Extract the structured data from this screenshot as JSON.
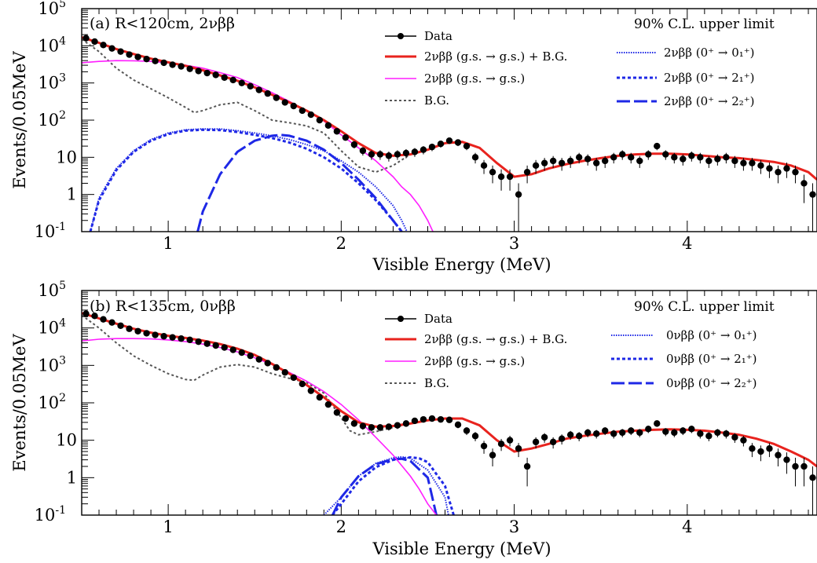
{
  "chart_data": [
    {
      "type": "line",
      "title": "(a) R<120cm, 2νββ",
      "xlabel": "Visible Energy (MeV)",
      "ylabel": "Events/0.05MeV",
      "xlim": [
        0.5,
        4.75
      ],
      "ylim": [
        0.1,
        100000
      ],
      "yscale": "log",
      "x_ticks": [
        "1",
        "2",
        "3",
        "4"
      ],
      "y_ticks": [
        {
          "base": "10",
          "exp": "-1"
        },
        {
          "base": "1",
          "exp": ""
        },
        {
          "base": "10",
          "exp": ""
        },
        {
          "base": "10",
          "exp": "2"
        },
        {
          "base": "10",
          "exp": "3"
        },
        {
          "base": "10",
          "exp": "4"
        },
        {
          "base": "10",
          "exp": "5"
        }
      ],
      "legend_header": "90% C.L. upper limit",
      "legend_left": [
        "Data",
        "2νββ (g.s. → g.s.) + B.G.",
        "2νββ (g.s. → g.s.)",
        "B.G."
      ],
      "legend_right": [
        "2νββ (0⁺ → 0₁⁺)",
        "2νββ (0⁺ → 2₁⁺)",
        "2νββ (0⁺ → 2₂⁺)"
      ],
      "colors": {
        "total": "#e8231e",
        "signal": "#ff1eff",
        "bg": "#555555",
        "limit": "#1e28e6"
      },
      "data_points": {
        "x": [
          0.525,
          0.575,
          0.625,
          0.675,
          0.725,
          0.775,
          0.825,
          0.875,
          0.925,
          0.975,
          1.025,
          1.075,
          1.125,
          1.175,
          1.225,
          1.275,
          1.325,
          1.375,
          1.425,
          1.475,
          1.525,
          1.575,
          1.625,
          1.675,
          1.725,
          1.775,
          1.825,
          1.875,
          1.925,
          1.975,
          2.025,
          2.075,
          2.125,
          2.175,
          2.225,
          2.275,
          2.325,
          2.375,
          2.425,
          2.475,
          2.525,
          2.575,
          2.625,
          2.675,
          2.725,
          2.775,
          2.825,
          2.875,
          2.925,
          2.975,
          3.025,
          3.075,
          3.125,
          3.175,
          3.225,
          3.275,
          3.325,
          3.375,
          3.425,
          3.475,
          3.525,
          3.575,
          3.625,
          3.675,
          3.725,
          3.775,
          3.825,
          3.875,
          3.925,
          3.975,
          4.025,
          4.075,
          4.125,
          4.175,
          4.225,
          4.275,
          4.325,
          4.375,
          4.425,
          4.475,
          4.525,
          4.575,
          4.625,
          4.675,
          4.725
        ],
        "y": [
          16000,
          13000,
          10500,
          8500,
          7000,
          5800,
          5000,
          4400,
          3900,
          3500,
          3100,
          2800,
          2400,
          2100,
          1850,
          1650,
          1400,
          1200,
          1000,
          820,
          650,
          520,
          400,
          300,
          240,
          180,
          140,
          100,
          72,
          50,
          34,
          22,
          15,
          12,
          12,
          11,
          12,
          13,
          14,
          16,
          19,
          23,
          28,
          25,
          20,
          10,
          6,
          4,
          3,
          3,
          1,
          4,
          6,
          7,
          8,
          7,
          8,
          10,
          9,
          7,
          8,
          10,
          12,
          10,
          8,
          12,
          20,
          12,
          10,
          9,
          11,
          10,
          8,
          9,
          10,
          8,
          7,
          7,
          6,
          5,
          4,
          5,
          4,
          2,
          1
        ]
      },
      "total_curve": {
        "x": [
          0.5,
          0.6,
          0.7,
          0.8,
          0.9,
          1.0,
          1.1,
          1.2,
          1.3,
          1.4,
          1.5,
          1.6,
          1.7,
          1.8,
          1.9,
          2.0,
          2.1,
          2.2,
          2.3,
          2.4,
          2.5,
          2.6,
          2.7,
          2.8,
          2.9,
          3.0,
          3.1,
          3.2,
          3.3,
          3.4,
          3.5,
          3.6,
          3.7,
          3.8,
          3.9,
          4.0,
          4.1,
          4.2,
          4.3,
          4.4,
          4.5,
          4.6,
          4.7,
          4.75
        ],
        "y": [
          17000,
          12000,
          8200,
          6000,
          4500,
          3600,
          2900,
          2200,
          1600,
          1150,
          760,
          480,
          300,
          180,
          100,
          50,
          24,
          13,
          11,
          12,
          16,
          24,
          26,
          18,
          7,
          3,
          3.5,
          5,
          6.5,
          8,
          9.5,
          11,
          12,
          12.5,
          12.5,
          12,
          11,
          10,
          9.5,
          8.5,
          7.5,
          6,
          4,
          2.5
        ]
      },
      "signal_curve": {
        "x": [
          0.5,
          0.6,
          0.7,
          0.8,
          0.9,
          1.0,
          1.1,
          1.2,
          1.3,
          1.4,
          1.5,
          1.6,
          1.7,
          1.8,
          1.9,
          2.0,
          2.1,
          2.2,
          2.3,
          2.35,
          2.4,
          2.45,
          2.5,
          2.53
        ],
        "y": [
          3500,
          3800,
          4000,
          3950,
          3800,
          3500,
          3000,
          2500,
          1900,
          1400,
          900,
          550,
          320,
          180,
          95,
          40,
          18,
          8,
          3,
          1.6,
          1.0,
          0.5,
          0.2,
          0.1
        ]
      },
      "bg_curve": {
        "x": [
          0.5,
          0.6,
          0.7,
          0.8,
          0.9,
          1.0,
          1.1,
          1.15,
          1.2,
          1.3,
          1.4,
          1.5,
          1.6,
          1.7,
          1.8,
          1.9,
          2.0,
          2.1,
          2.2,
          2.3,
          2.4,
          2.5,
          2.6,
          2.7,
          2.8,
          2.9,
          3.0,
          3.1,
          3.2,
          3.3,
          3.4,
          3.5,
          3.6,
          3.7,
          3.8,
          3.9,
          4.0,
          4.1,
          4.2,
          4.3,
          4.4,
          4.5,
          4.6,
          4.7,
          4.75
        ],
        "y": [
          15000,
          7000,
          2500,
          1200,
          700,
          400,
          220,
          160,
          180,
          260,
          300,
          180,
          100,
          85,
          70,
          45,
          15,
          5.5,
          4,
          6,
          12,
          16,
          24,
          26,
          18,
          7,
          3,
          3.5,
          5,
          6.5,
          8,
          9.5,
          11,
          12,
          12.5,
          12.5,
          12,
          11,
          10,
          9.5,
          8.5,
          7.5,
          6,
          4,
          2.5
        ]
      },
      "limit_0_1": {
        "x": [
          0.55,
          0.6,
          0.7,
          0.8,
          0.9,
          1.0,
          1.1,
          1.2,
          1.3,
          1.4,
          1.5,
          1.6,
          1.7,
          1.8,
          1.9,
          2.0,
          2.1,
          2.2,
          2.3,
          2.35,
          2.38
        ],
        "y": [
          0.1,
          0.8,
          5,
          15,
          30,
          45,
          55,
          58,
          58,
          52,
          45,
          38,
          30,
          22,
          15,
          8,
          4,
          1.6,
          0.5,
          0.2,
          0.1
        ]
      },
      "limit_2_1": {
        "x": [
          0.55,
          0.6,
          0.7,
          0.8,
          0.9,
          1.0,
          1.1,
          1.2,
          1.3,
          1.4,
          1.5,
          1.6,
          1.7,
          1.8,
          1.9,
          2.0,
          2.1,
          2.2,
          2.3,
          2.35
        ],
        "y": [
          0.1,
          0.7,
          4.5,
          14,
          28,
          42,
          52,
          55,
          54,
          48,
          40,
          33,
          25,
          17,
          10,
          5,
          2,
          0.7,
          0.2,
          0.1
        ]
      },
      "limit_2_2": {
        "x": [
          1.17,
          1.2,
          1.3,
          1.4,
          1.5,
          1.6,
          1.65,
          1.7,
          1.8,
          1.9,
          2.0,
          2.1,
          2.2,
          2.3,
          2.35
        ],
        "y": [
          0.1,
          0.35,
          3.5,
          14,
          28,
          38,
          40,
          38,
          28,
          16,
          7,
          2.5,
          0.8,
          0.2,
          0.1
        ]
      }
    },
    {
      "type": "line",
      "title": "(b) R<135cm, 0νββ",
      "xlabel": "Visible Energy (MeV)",
      "ylabel": "Events/0.05MeV",
      "xlim": [
        0.5,
        4.75
      ],
      "ylim": [
        0.1,
        100000
      ],
      "yscale": "log",
      "x_ticks": [
        "1",
        "2",
        "3",
        "4"
      ],
      "y_ticks": [
        {
          "base": "10",
          "exp": "-1"
        },
        {
          "base": "1",
          "exp": ""
        },
        {
          "base": "10",
          "exp": ""
        },
        {
          "base": "10",
          "exp": "2"
        },
        {
          "base": "10",
          "exp": "3"
        },
        {
          "base": "10",
          "exp": "4"
        },
        {
          "base": "10",
          "exp": "5"
        }
      ],
      "legend_header": "90% C.L. upper limit",
      "legend_left": [
        "Data",
        "2νββ (g.s. → g.s.) + B.G.",
        "2νββ (g.s. → g.s.)",
        "B.G."
      ],
      "legend_right": [
        "0νββ (0⁺ → 0₁⁺)",
        "0νββ (0⁺ → 2₁⁺)",
        "0νββ (0⁺ → 2₂⁺)"
      ],
      "colors": {
        "total": "#e8231e",
        "signal": "#ff1eff",
        "bg": "#555555",
        "limit": "#1e28e6"
      },
      "data_points": {
        "x": [
          0.525,
          0.575,
          0.625,
          0.675,
          0.725,
          0.775,
          0.825,
          0.875,
          0.925,
          0.975,
          1.025,
          1.075,
          1.125,
          1.175,
          1.225,
          1.275,
          1.325,
          1.375,
          1.425,
          1.475,
          1.525,
          1.575,
          1.625,
          1.675,
          1.725,
          1.775,
          1.825,
          1.875,
          1.925,
          1.975,
          2.025,
          2.075,
          2.125,
          2.175,
          2.225,
          2.275,
          2.325,
          2.375,
          2.425,
          2.475,
          2.525,
          2.575,
          2.625,
          2.675,
          2.725,
          2.775,
          2.825,
          2.875,
          2.925,
          2.975,
          3.025,
          3.075,
          3.125,
          3.175,
          3.225,
          3.275,
          3.325,
          3.375,
          3.425,
          3.475,
          3.525,
          3.575,
          3.625,
          3.675,
          3.725,
          3.775,
          3.825,
          3.875,
          3.925,
          3.975,
          4.025,
          4.075,
          4.125,
          4.175,
          4.225,
          4.275,
          4.325,
          4.375,
          4.425,
          4.475,
          4.525,
          4.575,
          4.625,
          4.675,
          4.725
        ],
        "y": [
          24000,
          21000,
          17000,
          14000,
          11500,
          9500,
          8200,
          7200,
          6500,
          6000,
          5600,
          5200,
          4800,
          4300,
          3800,
          3400,
          3000,
          2600,
          2200,
          1800,
          1450,
          1150,
          880,
          650,
          470,
          320,
          210,
          140,
          90,
          55,
          38,
          28,
          24,
          22,
          22,
          23,
          25,
          28,
          33,
          36,
          38,
          36,
          35,
          26,
          18,
          13,
          7,
          4,
          8,
          10,
          6,
          2,
          9,
          12,
          9,
          11,
          14,
          13,
          16,
          15,
          18,
          15,
          16,
          18,
          16,
          20,
          28,
          17,
          16,
          18,
          20,
          15,
          13,
          16,
          15,
          12,
          10,
          6,
          5,
          6,
          4,
          3,
          2,
          2,
          1
        ]
      },
      "total_curve": {
        "x": [
          0.5,
          0.6,
          0.7,
          0.8,
          0.9,
          1.0,
          1.1,
          1.2,
          1.3,
          1.4,
          1.5,
          1.6,
          1.7,
          1.8,
          1.9,
          2.0,
          2.1,
          2.2,
          2.3,
          2.4,
          2.5,
          2.6,
          2.7,
          2.8,
          2.9,
          3.0,
          3.1,
          3.2,
          3.3,
          3.4,
          3.5,
          3.6,
          3.7,
          3.8,
          3.9,
          4.0,
          4.1,
          4.2,
          4.3,
          4.4,
          4.5,
          4.6,
          4.7,
          4.75
        ],
        "y": [
          25000,
          18000,
          13000,
          9500,
          7500,
          6200,
          5400,
          4600,
          3700,
          2800,
          1900,
          1100,
          600,
          300,
          140,
          60,
          30,
          23,
          24,
          28,
          34,
          38,
          38,
          25,
          10,
          5,
          6,
          8,
          11,
          13,
          15,
          17,
          18,
          19,
          19.5,
          19,
          18,
          16,
          14,
          11,
          8,
          5,
          3,
          2
        ]
      },
      "signal_curve": {
        "x": [
          0.5,
          0.6,
          0.7,
          0.8,
          0.9,
          1.0,
          1.1,
          1.2,
          1.3,
          1.4,
          1.5,
          1.6,
          1.7,
          1.8,
          1.9,
          2.0,
          2.1,
          2.2,
          2.3,
          2.4,
          2.45,
          2.5,
          2.55
        ],
        "y": [
          4500,
          5000,
          5200,
          5200,
          5100,
          4800,
          4300,
          3700,
          3000,
          2300,
          1600,
          1050,
          650,
          380,
          200,
          90,
          35,
          12,
          4,
          1.1,
          0.5,
          0.2,
          0.1
        ]
      },
      "bg_curve": {
        "x": [
          0.5,
          0.6,
          0.7,
          0.8,
          0.9,
          1.0,
          1.1,
          1.15,
          1.2,
          1.3,
          1.4,
          1.5,
          1.6,
          1.7,
          1.8,
          1.9,
          2.0,
          2.05,
          2.1,
          2.2,
          2.3,
          2.4,
          2.5,
          2.6,
          2.7,
          2.8,
          2.9,
          3.0,
          3.1,
          3.2,
          3.3,
          3.4,
          3.5,
          3.6,
          3.7,
          3.8,
          3.9,
          4.0,
          4.1,
          4.2,
          4.3,
          4.4,
          4.5,
          4.6,
          4.7,
          4.75
        ],
        "y": [
          22000,
          10000,
          4000,
          1800,
          1000,
          600,
          420,
          400,
          550,
          900,
          1050,
          900,
          600,
          450,
          350,
          180,
          40,
          18,
          14,
          17,
          22,
          28,
          34,
          38,
          38,
          25,
          10,
          5,
          6,
          8,
          11,
          13,
          15,
          17,
          18,
          19,
          19.5,
          19,
          18,
          16,
          14,
          11,
          8,
          5,
          3,
          2
        ]
      },
      "limit_0_1": {
        "x": [
          1.9,
          2.0,
          2.1,
          2.2,
          2.3,
          2.35,
          2.4,
          2.5,
          2.6,
          2.62
        ],
        "y": [
          0.1,
          0.3,
          1.1,
          2.4,
          3.4,
          3.6,
          3.3,
          1.6,
          0.3,
          0.1
        ]
      },
      "limit_2_1": {
        "x": [
          1.95,
          2.0,
          2.1,
          2.2,
          2.3,
          2.4,
          2.45,
          2.5,
          2.6,
          2.65
        ],
        "y": [
          0.1,
          0.2,
          0.8,
          1.9,
          3.0,
          3.5,
          3.3,
          2.6,
          0.6,
          0.1
        ]
      },
      "limit_2_2": {
        "x": [
          1.95,
          2.0,
          2.1,
          2.2,
          2.3,
          2.35,
          2.4,
          2.5,
          2.55
        ],
        "y": [
          0.1,
          0.3,
          1.1,
          2.3,
          3.1,
          3.2,
          2.8,
          1.0,
          0.1
        ]
      }
    }
  ]
}
